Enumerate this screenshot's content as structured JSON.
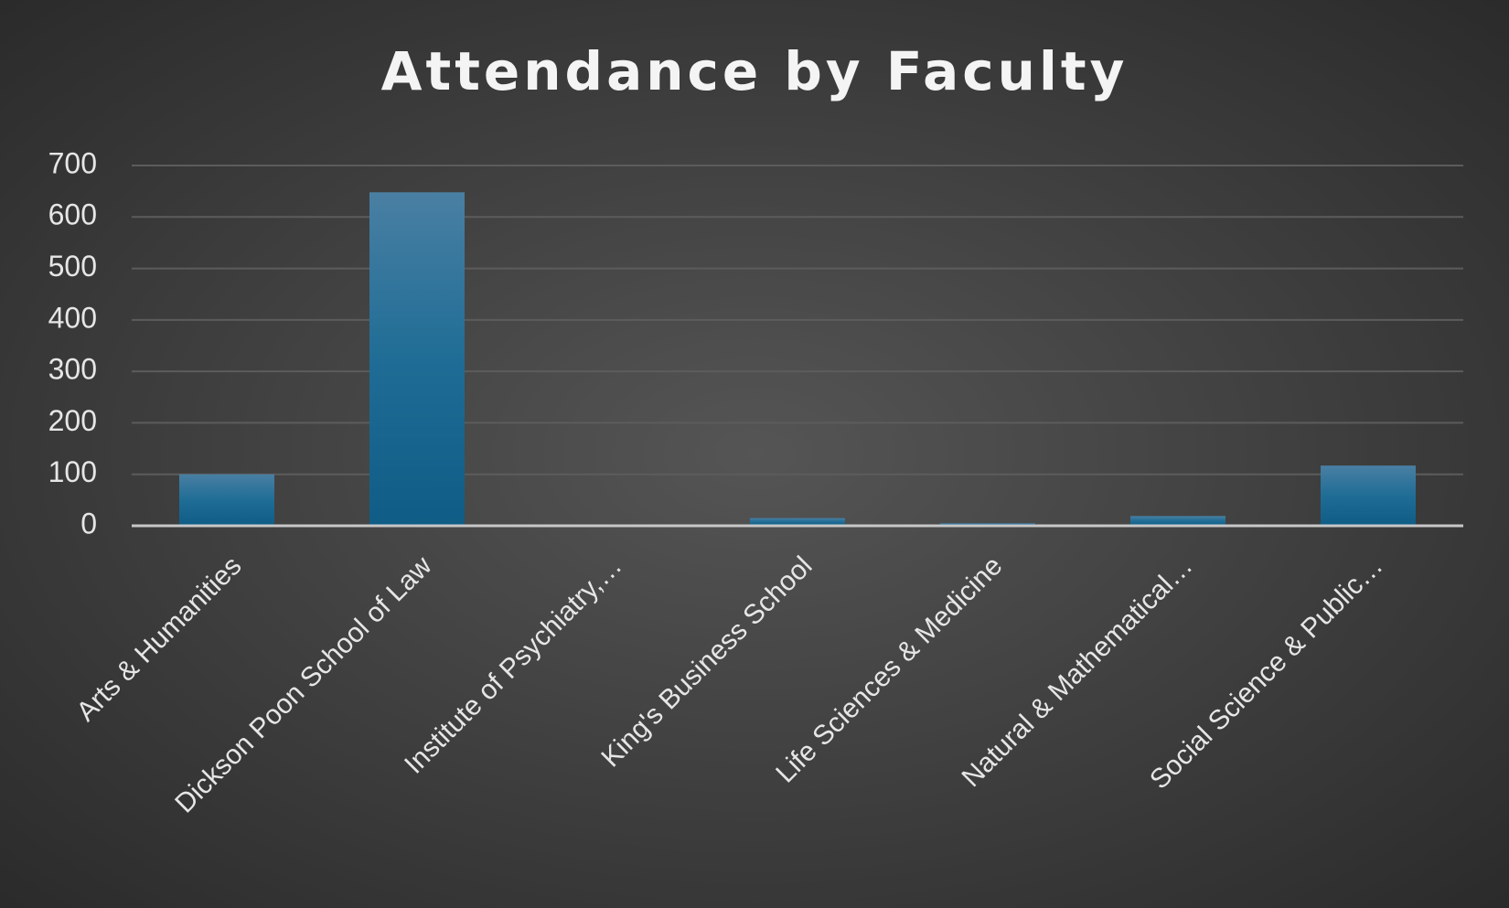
{
  "chart_data": {
    "type": "bar",
    "title": "Attendance by Faculty",
    "categories": [
      "Arts & Humanities",
      "Dickson Poon School of Law",
      "Institute of Psychiatry,…",
      "King's Business School",
      "Life Sciences & Medicine",
      "Natural & Mathematical…",
      "Social Science & Public…"
    ],
    "values": [
      100,
      648,
      2,
      15,
      5,
      19,
      117
    ],
    "color": "#1f6d96",
    "ylim": [
      0,
      700
    ],
    "yticks": [
      0,
      100,
      200,
      300,
      400,
      500,
      600,
      700
    ],
    "grid": true
  }
}
